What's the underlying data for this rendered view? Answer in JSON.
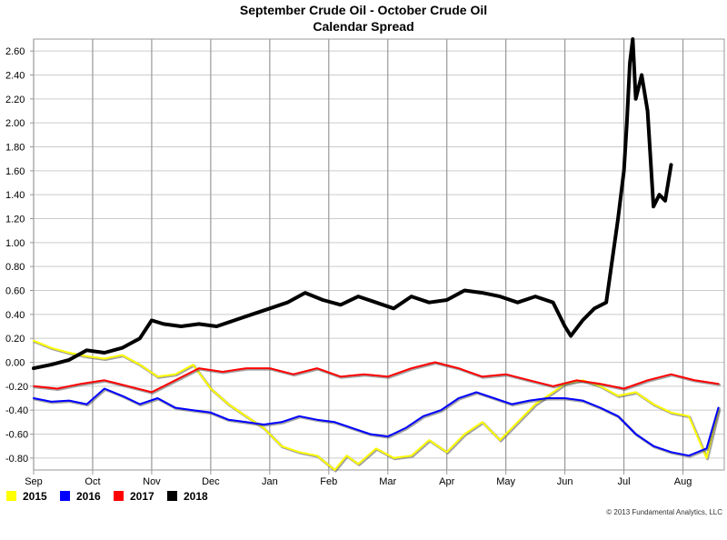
{
  "chart_data": {
    "type": "line",
    "title": "September Crude Oil - October Crude Oil",
    "subtitle": "Calendar Spread",
    "x_tick_labels": [
      "Sep",
      "Oct",
      "Nov",
      "Dec",
      "Jan",
      "Feb",
      "Mar",
      "Apr",
      "May",
      "Jun",
      "Jul",
      "Aug"
    ],
    "y_tick_labels": [
      "2.60",
      "2.40",
      "2.20",
      "2.00",
      "1.80",
      "1.60",
      "1.40",
      "1.20",
      "1.00",
      "0.80",
      "0.60",
      "0.40",
      "0.20",
      "0.00",
      "-0.20",
      "-0.40",
      "-0.60",
      "-0.80"
    ],
    "ylim": [
      -0.9,
      2.7
    ],
    "grid": true,
    "legend_position": "bottom-left",
    "x_axis_note": "x values are months since start of September",
    "series": [
      {
        "name": "2015",
        "color": "#ffff00",
        "x": [
          0,
          0.3,
          0.6,
          0.9,
          1.2,
          1.5,
          1.8,
          2.1,
          2.4,
          2.7,
          3.0,
          3.3,
          3.6,
          3.9,
          4.2,
          4.5,
          4.8,
          5.1,
          5.3,
          5.5,
          5.8,
          6.1,
          6.4,
          6.7,
          7.0,
          7.3,
          7.6,
          7.9,
          8.2,
          8.5,
          8.8,
          9.0,
          9.3,
          9.6,
          9.9,
          10.2,
          10.5,
          10.8,
          11.1,
          11.4,
          11.6
        ],
        "values": [
          0.18,
          0.12,
          0.08,
          0.05,
          0.03,
          0.06,
          -0.02,
          -0.12,
          -0.1,
          -0.02,
          -0.22,
          -0.35,
          -0.45,
          -0.55,
          -0.7,
          -0.75,
          -0.78,
          -0.9,
          -0.78,
          -0.85,
          -0.72,
          -0.8,
          -0.78,
          -0.65,
          -0.75,
          -0.6,
          -0.5,
          -0.65,
          -0.5,
          -0.35,
          -0.25,
          -0.18,
          -0.15,
          -0.2,
          -0.28,
          -0.25,
          -0.35,
          -0.42,
          -0.45,
          -0.8,
          -0.4
        ]
      },
      {
        "name": "2016",
        "color": "#0000ff",
        "x": [
          0,
          0.3,
          0.6,
          0.9,
          1.2,
          1.5,
          1.8,
          2.1,
          2.4,
          2.7,
          3.0,
          3.3,
          3.6,
          3.9,
          4.2,
          4.5,
          4.8,
          5.1,
          5.4,
          5.7,
          6.0,
          6.3,
          6.6,
          6.9,
          7.2,
          7.5,
          7.8,
          8.1,
          8.4,
          8.7,
          9.0,
          9.3,
          9.6,
          9.9,
          10.2,
          10.5,
          10.8,
          11.1,
          11.4,
          11.6
        ],
        "values": [
          -0.3,
          -0.33,
          -0.32,
          -0.35,
          -0.22,
          -0.28,
          -0.35,
          -0.3,
          -0.38,
          -0.4,
          -0.42,
          -0.48,
          -0.5,
          -0.52,
          -0.5,
          -0.45,
          -0.48,
          -0.5,
          -0.55,
          -0.6,
          -0.62,
          -0.55,
          -0.45,
          -0.4,
          -0.3,
          -0.25,
          -0.3,
          -0.35,
          -0.32,
          -0.3,
          -0.3,
          -0.32,
          -0.38,
          -0.45,
          -0.6,
          -0.7,
          -0.75,
          -0.78,
          -0.72,
          -0.38
        ]
      },
      {
        "name": "2017",
        "color": "#ff0000",
        "x": [
          0,
          0.4,
          0.8,
          1.2,
          1.6,
          2.0,
          2.4,
          2.8,
          3.2,
          3.6,
          4.0,
          4.4,
          4.8,
          5.2,
          5.6,
          6.0,
          6.4,
          6.8,
          7.2,
          7.6,
          8.0,
          8.4,
          8.8,
          9.2,
          9.6,
          10.0,
          10.4,
          10.8,
          11.2,
          11.6
        ],
        "values": [
          -0.2,
          -0.22,
          -0.18,
          -0.15,
          -0.2,
          -0.25,
          -0.15,
          -0.05,
          -0.08,
          -0.05,
          -0.05,
          -0.1,
          -0.05,
          -0.12,
          -0.1,
          -0.12,
          -0.05,
          0.0,
          -0.05,
          -0.12,
          -0.1,
          -0.15,
          -0.2,
          -0.15,
          -0.18,
          -0.22,
          -0.15,
          -0.1,
          -0.15,
          -0.18
        ]
      },
      {
        "name": "2018",
        "color": "#000000",
        "x": [
          0,
          0.3,
          0.6,
          0.9,
          1.2,
          1.5,
          1.8,
          2.0,
          2.2,
          2.5,
          2.8,
          3.1,
          3.4,
          3.7,
          4.0,
          4.3,
          4.6,
          4.9,
          5.2,
          5.5,
          5.8,
          6.1,
          6.4,
          6.7,
          7.0,
          7.3,
          7.6,
          7.9,
          8.2,
          8.5,
          8.8,
          9.0,
          9.1,
          9.3,
          9.5,
          9.7,
          9.8,
          9.9,
          10.0,
          10.05,
          10.1,
          10.15,
          10.2,
          10.3,
          10.4,
          10.5,
          10.6,
          10.7,
          10.8
        ],
        "values": [
          -0.05,
          -0.02,
          0.02,
          0.1,
          0.08,
          0.12,
          0.2,
          0.35,
          0.32,
          0.3,
          0.32,
          0.3,
          0.35,
          0.4,
          0.45,
          0.5,
          0.58,
          0.52,
          0.48,
          0.55,
          0.5,
          0.45,
          0.55,
          0.5,
          0.52,
          0.6,
          0.58,
          0.55,
          0.5,
          0.55,
          0.5,
          0.3,
          0.22,
          0.35,
          0.45,
          0.5,
          0.85,
          1.2,
          1.6,
          2.0,
          2.5,
          2.7,
          2.2,
          2.4,
          2.1,
          1.3,
          1.4,
          1.35,
          1.65
        ]
      }
    ],
    "copyright": "© 2013 Fundamental Analytics, LLC"
  }
}
